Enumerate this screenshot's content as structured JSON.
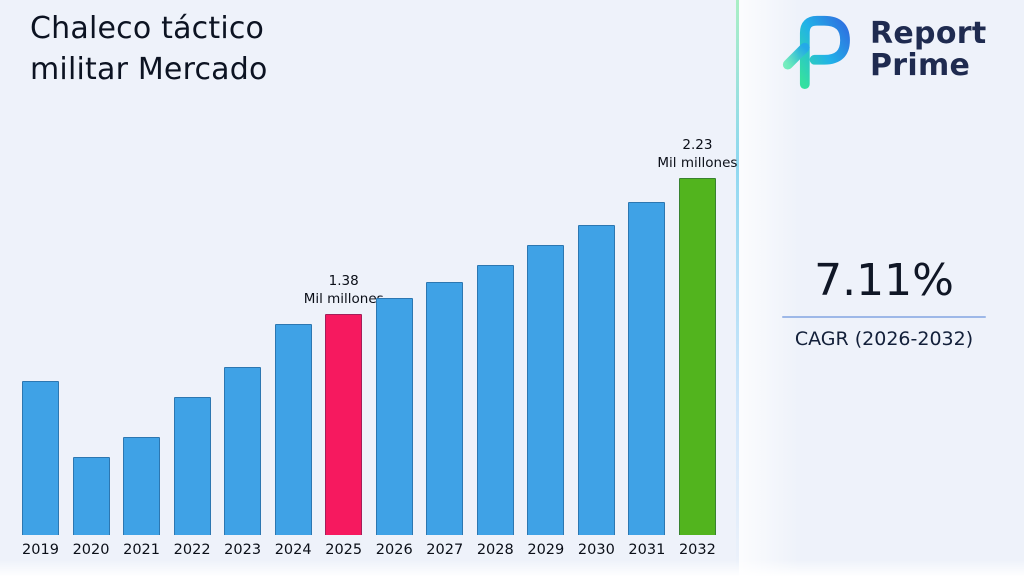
{
  "title": {
    "line1": "Chaleco táctico",
    "line2": "militar Mercado"
  },
  "brand": {
    "line1": "Report",
    "line2": "Prime"
  },
  "stats": {
    "cagr_value": "7.11%",
    "cagr_label": "CAGR (2026-2032)"
  },
  "colors": {
    "bar_default": "#3fa2e6",
    "bar_2025": "#f6195f",
    "bar_2032": "#52b41e",
    "background": "#eef2fa",
    "brand_navy": "#1f2b50",
    "accent_teal": "#35e0a1",
    "accent_blue": "#2f6fe0"
  },
  "chart_data": {
    "type": "bar",
    "title": "Chaleco táctico militar Mercado",
    "unit": "Mil millones",
    "categories": [
      "2019",
      "2020",
      "2021",
      "2022",
      "2023",
      "2024",
      "2025",
      "2026",
      "2027",
      "2028",
      "2029",
      "2030",
      "2031",
      "2032"
    ],
    "values": [
      0.96,
      0.49,
      0.61,
      0.86,
      1.05,
      1.32,
      1.38,
      1.48,
      1.58,
      1.69,
      1.81,
      1.94,
      2.08,
      2.23
    ],
    "ylim": [
      0,
      2.4
    ],
    "grid": false,
    "legend": "none",
    "colors": {
      "default": "#3fa2e6",
      "highlights": {
        "2025": "#f6195f",
        "2032": "#52b41e"
      }
    },
    "annotations": [
      {
        "category": "2025",
        "value_label": "1.38",
        "unit_label": "Mil millones"
      },
      {
        "category": "2032",
        "value_label": "2.23",
        "unit_label": "Mil millones"
      }
    ]
  }
}
